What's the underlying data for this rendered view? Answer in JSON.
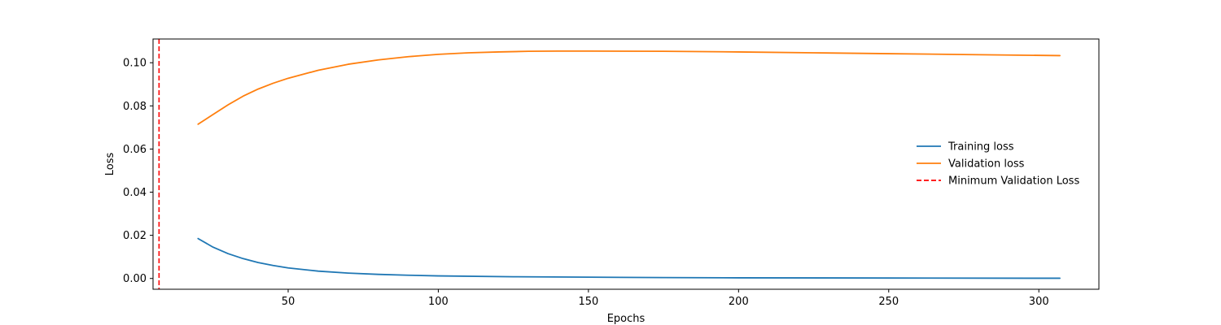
{
  "chart_data": {
    "type": "line",
    "title": "",
    "xlabel": "Epochs",
    "ylabel": "Loss",
    "xlim": [
      5,
      320
    ],
    "ylim": [
      -0.005,
      0.111
    ],
    "xticks": [
      50,
      100,
      150,
      200,
      250,
      300
    ],
    "xtick_labels": [
      "50",
      "100",
      "150",
      "200",
      "250",
      "300"
    ],
    "yticks": [
      0.0,
      0.02,
      0.04,
      0.06,
      0.08,
      0.1
    ],
    "ytick_labels": [
      "0.00",
      "0.02",
      "0.04",
      "0.06",
      "0.08",
      "0.10"
    ],
    "grid": false,
    "legend_position": "center-right",
    "series": [
      {
        "name": "Training loss",
        "color": "#1f77b4",
        "style": "solid",
        "x": [
          20,
          25,
          30,
          35,
          40,
          45,
          50,
          60,
          70,
          80,
          90,
          100,
          125,
          150,
          175,
          200,
          250,
          307
        ],
        "y": [
          0.0185,
          0.0145,
          0.0115,
          0.0092,
          0.0074,
          0.006,
          0.0049,
          0.0034,
          0.0025,
          0.0019,
          0.0015,
          0.0012,
          0.0008,
          0.0006,
          0.0004,
          0.0003,
          0.0002,
          0.0001
        ]
      },
      {
        "name": "Validation loss",
        "color": "#ff7f0e",
        "style": "solid",
        "x": [
          20,
          25,
          30,
          35,
          40,
          45,
          50,
          60,
          70,
          80,
          90,
          100,
          110,
          120,
          130,
          140,
          150,
          175,
          200,
          225,
          250,
          275,
          307
        ],
        "y": [
          0.0715,
          0.076,
          0.0805,
          0.0845,
          0.0878,
          0.0905,
          0.0928,
          0.0965,
          0.0993,
          0.1013,
          0.1028,
          0.1039,
          0.1046,
          0.105,
          0.1053,
          0.1054,
          0.1054,
          0.1053,
          0.105,
          0.1046,
          0.1042,
          0.1038,
          0.1033
        ]
      }
    ],
    "vlines": [
      {
        "name": "Minimum Validation Loss",
        "x": 7,
        "color": "#ff0000",
        "style": "dashed"
      }
    ]
  }
}
